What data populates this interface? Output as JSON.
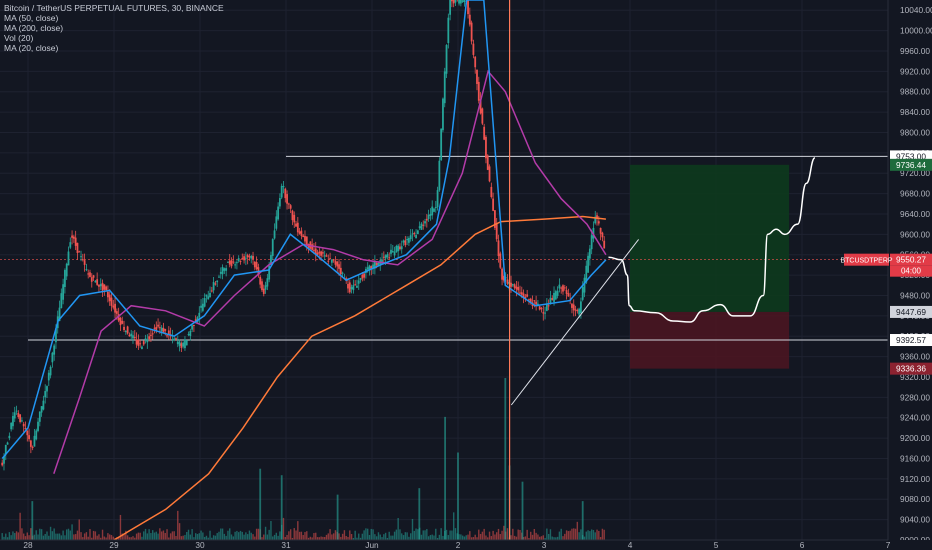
{
  "legend": {
    "title": "Bitcoin / TetherUS PERPETUAL FUTURES, 30, BINANCE",
    "indicators": [
      "MA (50, close)",
      "MA (200, close)",
      "Vol (20)",
      "MA (20, close)"
    ]
  },
  "colors": {
    "background": "#131722",
    "grid": "#1e2230",
    "up": "#26a69a",
    "down": "#ef5350",
    "ma50": "#2196f3",
    "ma200": "#ff7a39",
    "ma20": "#b33ba8",
    "profit_zone": "#0d3a1d",
    "loss_zone": "#4a1521",
    "axis_text": "#b2b5be",
    "current_price_label": "#e23b47"
  },
  "chart_data": {
    "type": "candlestick",
    "symbol": "BTCUSDTPERP",
    "ylim": [
      9000,
      10060
    ],
    "y_ticks": [
      10040,
      10000,
      9960,
      9920,
      9880,
      9840,
      9800,
      9760,
      9720,
      9680,
      9640,
      9600,
      9560,
      9520,
      9480,
      9440,
      9400,
      9360,
      9320,
      9280,
      9240,
      9200,
      9160,
      9120,
      9080,
      9040,
      9000
    ],
    "x_ticks": [
      {
        "label": "28",
        "x": 0
      },
      {
        "label": "29",
        "x": 1
      },
      {
        "label": "30",
        "x": 2
      },
      {
        "label": "31",
        "x": 3
      },
      {
        "label": "Jun",
        "x": 4
      },
      {
        "label": "2",
        "x": 5
      },
      {
        "label": "3",
        "x": 6
      },
      {
        "label": "4",
        "x": 7
      },
      {
        "label": "5",
        "x": 8
      },
      {
        "label": "6",
        "x": 9
      },
      {
        "label": "7",
        "x": 10
      }
    ],
    "price_waypoints": [
      [
        -0.3,
        9150
      ],
      [
        -0.15,
        9260
      ],
      [
        0.05,
        9180
      ],
      [
        0.25,
        9330
      ],
      [
        0.5,
        9600
      ],
      [
        0.7,
        9520
      ],
      [
        0.9,
        9490
      ],
      [
        1.1,
        9420
      ],
      [
        1.3,
        9380
      ],
      [
        1.5,
        9420
      ],
      [
        1.8,
        9380
      ],
      [
        2.05,
        9470
      ],
      [
        2.3,
        9540
      ],
      [
        2.6,
        9560
      ],
      [
        2.75,
        9480
      ],
      [
        2.95,
        9700
      ],
      [
        3.1,
        9620
      ],
      [
        3.3,
        9570
      ],
      [
        3.6,
        9540
      ],
      [
        3.75,
        9490
      ],
      [
        3.95,
        9530
      ],
      [
        4.2,
        9560
      ],
      [
        4.5,
        9600
      ],
      [
        4.75,
        9660
      ],
      [
        4.9,
        10060
      ],
      [
        5.1,
        10060
      ],
      [
        5.5,
        9520
      ],
      [
        5.75,
        9480
      ],
      [
        6.0,
        9450
      ],
      [
        6.2,
        9500
      ],
      [
        6.4,
        9440
      ],
      [
        6.6,
        9640
      ],
      [
        6.72,
        9560
      ]
    ],
    "ma50_points": [
      [
        -0.3,
        9160
      ],
      [
        0.0,
        9220
      ],
      [
        0.35,
        9430
      ],
      [
        0.6,
        9480
      ],
      [
        0.95,
        9490
      ],
      [
        1.3,
        9420
      ],
      [
        1.7,
        9400
      ],
      [
        2.05,
        9440
      ],
      [
        2.4,
        9520
      ],
      [
        2.8,
        9530
      ],
      [
        3.05,
        9600
      ],
      [
        3.35,
        9560
      ],
      [
        3.7,
        9510
      ],
      [
        4.1,
        9540
      ],
      [
        4.4,
        9560
      ],
      [
        4.75,
        9620
      ],
      [
        4.9,
        9750
      ],
      [
        5.1,
        10060
      ],
      [
        5.3,
        10060
      ],
      [
        5.55,
        9500
      ],
      [
        5.9,
        9460
      ],
      [
        6.3,
        9470
      ],
      [
        6.55,
        9520
      ],
      [
        6.72,
        9550
      ]
    ],
    "ma200_points": [
      [
        1.0,
        9000
      ],
      [
        1.6,
        9060
      ],
      [
        2.1,
        9130
      ],
      [
        2.5,
        9220
      ],
      [
        2.9,
        9320
      ],
      [
        3.3,
        9400
      ],
      [
        3.8,
        9440
      ],
      [
        4.4,
        9500
      ],
      [
        4.8,
        9540
      ],
      [
        5.2,
        9600
      ],
      [
        5.5,
        9625
      ],
      [
        6.0,
        9630
      ],
      [
        6.45,
        9635
      ],
      [
        6.72,
        9630
      ]
    ],
    "ma20_points": [
      [
        0.3,
        9130
      ],
      [
        0.6,
        9280
      ],
      [
        0.85,
        9410
      ],
      [
        1.2,
        9460
      ],
      [
        1.6,
        9450
      ],
      [
        2.05,
        9420
      ],
      [
        2.4,
        9480
      ],
      [
        2.8,
        9540
      ],
      [
        3.2,
        9580
      ],
      [
        3.55,
        9570
      ],
      [
        3.9,
        9550
      ],
      [
        4.3,
        9540
      ],
      [
        4.7,
        9590
      ],
      [
        5.05,
        9720
      ],
      [
        5.35,
        9920
      ],
      [
        5.55,
        9880
      ],
      [
        5.9,
        9740
      ],
      [
        6.2,
        9670
      ],
      [
        6.5,
        9620
      ],
      [
        6.72,
        9560
      ]
    ],
    "volume_spikes": [
      {
        "x": 4.85,
        "v": 0.38
      },
      {
        "x": 5.0,
        "v": 0.27
      },
      {
        "x": 5.55,
        "v": 0.5
      },
      {
        "x": 5.6,
        "v": 0.23
      },
      {
        "x": 5.75,
        "v": 0.18
      },
      {
        "x": 6.45,
        "v": 0.12
      },
      {
        "x": 0.05,
        "v": 0.12
      },
      {
        "x": 2.7,
        "v": 0.22
      },
      {
        "x": 3.6,
        "v": 0.14
      },
      {
        "x": 4.55,
        "v": 0.16
      },
      {
        "x": 2.95,
        "v": 0.2
      }
    ],
    "horizontal_lines": [
      {
        "price": 9753.0,
        "x_start": 3.0,
        "label": "9753.00",
        "bg": "#ffffff",
        "fg": "#131722"
      },
      {
        "price": 9392.57,
        "x_start": 0.0,
        "label": "9392.57",
        "bg": "#ffffff",
        "fg": "#131722"
      }
    ],
    "vertical_line": {
      "x": 5.6,
      "color": "#ff7a59"
    },
    "trend_line": {
      "x1": 5.62,
      "y1": 9265,
      "x2": 7.1,
      "y2": 9590
    },
    "position": {
      "x_start": 7.0,
      "x_end": 8.85,
      "entry": 9447.69,
      "target": 9736.44,
      "stop": 9336.36
    },
    "projection_path": [
      [
        6.75,
        9555
      ],
      [
        6.9,
        9550
      ],
      [
        6.97,
        9520
      ],
      [
        6.99,
        9460
      ],
      [
        7.05,
        9450
      ],
      [
        7.3,
        9446
      ],
      [
        7.5,
        9430
      ],
      [
        7.7,
        9428
      ],
      [
        7.85,
        9450
      ],
      [
        8.05,
        9462
      ],
      [
        8.2,
        9440
      ],
      [
        8.4,
        9440
      ],
      [
        8.55,
        9480
      ],
      [
        8.6,
        9600
      ],
      [
        8.7,
        9610
      ],
      [
        8.8,
        9600
      ],
      [
        8.95,
        9620
      ],
      [
        9.05,
        9700
      ],
      [
        9.15,
        9750
      ]
    ],
    "price_labels": [
      {
        "price": 9736.44,
        "text": "9736.44",
        "bg": "#1e6b3c",
        "fg": "#ffffff"
      },
      {
        "price": 9550.27,
        "text": "9550.27",
        "bg": "#e23b47",
        "fg": "#ffffff",
        "symbol": "BTCUSDTPERP",
        "countdown": "04:00"
      },
      {
        "price": 9447.69,
        "text": "9447.69",
        "bg": "#d1d4dc",
        "fg": "#131722"
      },
      {
        "price": 9336.36,
        "text": "9336.36",
        "bg": "#8c2230",
        "fg": "#ffffff"
      }
    ]
  }
}
